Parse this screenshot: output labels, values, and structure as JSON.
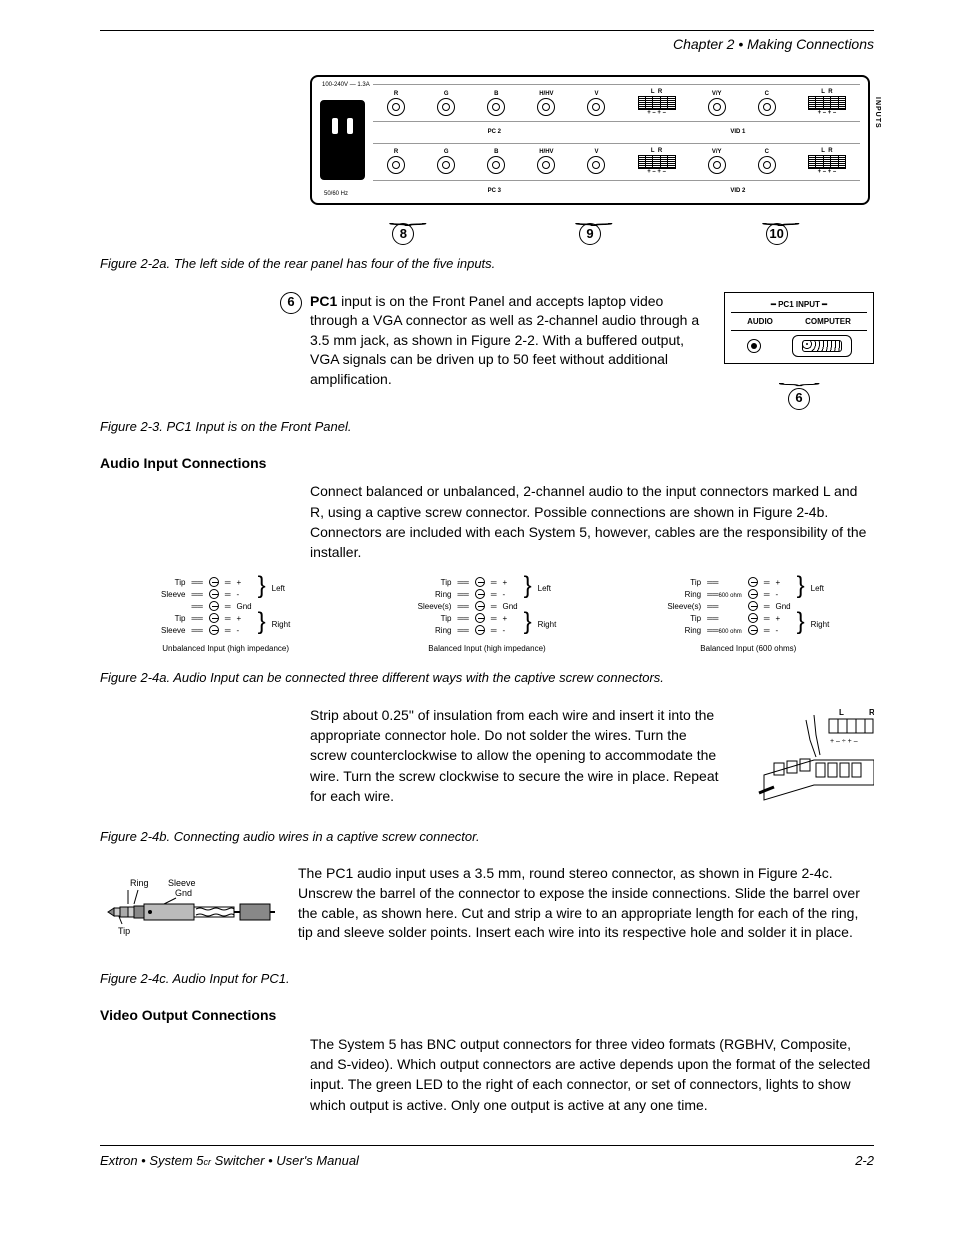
{
  "header": {
    "chapter": "Chapter 2 • Making Connections"
  },
  "figure2_2a": {
    "caption": "Figure 2-2a. The left side of the rear panel has four of the five inputs.",
    "power_label": "100-240V — 1.3A",
    "freq_label": "50/60 Hz",
    "row_labels": [
      "PC 2",
      "PC 3"
    ],
    "vid_labels": [
      "VID 1",
      "VID 2"
    ],
    "bnc_labels": [
      "R",
      "G",
      "B",
      "H/HV",
      "V"
    ],
    "lr_labels": [
      "L",
      "R"
    ],
    "vy_label": "V/Y",
    "c_label": "C",
    "polarity": "+ – + –",
    "inputs_text": "INPUTS",
    "callouts": [
      "8",
      "9",
      "10"
    ]
  },
  "pc1": {
    "callout": "6",
    "bold_label": "PC1",
    "text": " input is on the Front Panel and accepts laptop video through a VGA connector as well as 2-channel audio through a 3.5 mm jack, as shown in Figure 2-2. With a buffered output, VGA signals can be driven up to 50 feet without additional amplification.",
    "panel_title": "PC1 INPUT",
    "panel_audio": "AUDIO",
    "panel_computer": "COMPUTER",
    "caption": "Figure 2-3. PC1 Input is on the Front Panel."
  },
  "audio_input": {
    "heading": "Audio Input Connections",
    "para1": "Connect balanced or unbalanced, 2-channel audio to the input connectors marked L and R, using a captive screw connector. Possible connections are shown in Figure 2-4b. Connectors are included with each System 5, however, cables are the responsibility of the installer.",
    "diagrams": [
      {
        "rows": [
          [
            "Tip",
            "+"
          ],
          [
            "Sleeve",
            "-"
          ],
          [
            "",
            "Gnd"
          ],
          [
            "Tip",
            "+"
          ],
          [
            "Sleeve",
            "-"
          ]
        ],
        "groups": [
          "Left",
          "Right"
        ],
        "label": "Unbalanced Input (high impedance)"
      },
      {
        "rows": [
          [
            "Tip",
            "+"
          ],
          [
            "Ring",
            "-"
          ],
          [
            "Sleeve(s)",
            "Gnd"
          ],
          [
            "Tip",
            "+"
          ],
          [
            "Ring",
            "-"
          ]
        ],
        "groups": [
          "Left",
          "Right"
        ],
        "label": "Balanced Input (high impedance)"
      },
      {
        "rows": [
          [
            "Tip",
            "+"
          ],
          [
            "Ring",
            "-"
          ],
          [
            "Sleeve(s)",
            "Gnd"
          ],
          [
            "Tip",
            "+"
          ],
          [
            "Ring",
            "-"
          ]
        ],
        "ohm": "600 ohm",
        "groups": [
          "Left",
          "Right"
        ],
        "label": "Balanced Input (600 ohms)"
      }
    ],
    "caption_4a": "Figure 2-4a. Audio Input can be connected three different ways with the captive screw connectors.",
    "para2": "Strip about 0.25\" of insulation from each wire and insert it into the appropriate connector hole. Do not solder the wires. Turn the screw counterclockwise to allow the opening to accommodate the wire. Turn the screw clockwise to secure the wire in place. Repeat for each wire.",
    "caption_4b": "Figure 2-4b. Connecting audio wires in a captive screw connector.",
    "captive_lr": "L       R",
    "captive_polarity": "+ – ÷ + –",
    "para3": "The PC1 audio input uses a 3.5 mm, round stereo connector, as shown in Figure 2-4c. Unscrew the barrel of the connector to expose the inside connections. Slide the barrel over the cable, as shown here. Cut and strip a wire to an appropriate length for each of the ring, tip and sleeve solder points. Insert each wire into its respective hole and solder it in place.",
    "caption_4c": "Figure 2-4c. Audio Input for PC1.",
    "jack_labels": {
      "ring": "Ring",
      "tip": "Tip",
      "sleeve": "Sleeve",
      "gnd": "Gnd"
    }
  },
  "video_output": {
    "heading": "Video Output Connections",
    "para": "The System 5 has BNC output connectors for three video formats (RGBHV, Composite, and S-video). Which output connectors are active depends upon the format of the selected input. The green LED to the right of each connector, or set of connectors, lights to show which output is active. Only one output is active at any one time."
  },
  "footer": {
    "left": "Extron • System 5",
    "left_cr": "cr",
    "left_tail": " Switcher • User's Manual",
    "right": "2-2"
  }
}
